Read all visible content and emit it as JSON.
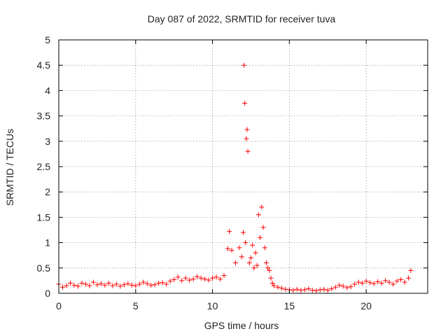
{
  "chart_data": {
    "type": "scatter",
    "title": "Day 087 of 2022, SRMTID for receiver tuva",
    "xlabel": "GPS time / hours",
    "ylabel": "SRMTID / TECUs",
    "xlim": [
      0,
      24
    ],
    "ylim": [
      0,
      5
    ],
    "xticks": [
      0,
      5,
      10,
      15,
      20
    ],
    "yticks": [
      0,
      0.5,
      1,
      1.5,
      2,
      2.5,
      3,
      3.5,
      4,
      4.5,
      5
    ],
    "ytick_labels": [
      "0",
      "0.5",
      "1",
      "1.5",
      "2",
      "2.5",
      "3",
      "3.5",
      "4",
      "4.5",
      "5"
    ],
    "grid": true,
    "marker": "+",
    "color": "#ff0000",
    "series": [
      {
        "x": [
          0.0,
          0.25,
          0.5,
          0.75,
          1.0,
          1.25,
          1.5,
          1.75,
          2.0,
          2.25,
          2.5,
          2.75,
          3.0,
          3.25,
          3.5,
          3.75,
          4.0,
          4.25,
          4.5,
          4.75,
          5.0,
          5.25,
          5.5,
          5.75,
          6.0,
          6.25,
          6.5,
          6.75,
          7.0,
          7.25,
          7.5,
          7.75,
          8.0,
          8.25,
          8.5,
          8.75,
          9.0,
          9.25,
          9.5,
          9.75,
          10.0,
          10.25,
          10.5,
          10.75,
          11.0,
          11.1,
          11.25,
          11.5,
          11.75,
          11.9,
          12.0,
          12.05,
          12.1,
          12.15,
          12.2,
          12.25,
          12.3,
          12.4,
          12.5,
          12.6,
          12.7,
          12.8,
          12.9,
          13.0,
          13.1,
          13.2,
          13.3,
          13.4,
          13.5,
          13.6,
          13.7,
          13.8,
          13.9,
          14.0,
          14.25,
          14.5,
          14.75,
          15.0,
          15.25,
          15.5,
          15.75,
          16.0,
          16.25,
          16.5,
          16.75,
          17.0,
          17.25,
          17.5,
          17.75,
          18.0,
          18.25,
          18.5,
          18.75,
          19.0,
          19.25,
          19.5,
          19.75,
          20.0,
          20.25,
          20.5,
          20.75,
          21.0,
          21.25,
          21.5,
          21.75,
          22.0,
          22.25,
          22.5,
          22.75,
          22.9
        ],
        "y": [
          0.18,
          0.12,
          0.15,
          0.2,
          0.16,
          0.14,
          0.2,
          0.18,
          0.15,
          0.22,
          0.17,
          0.19,
          0.16,
          0.2,
          0.15,
          0.18,
          0.14,
          0.17,
          0.19,
          0.16,
          0.15,
          0.18,
          0.22,
          0.19,
          0.16,
          0.17,
          0.2,
          0.21,
          0.18,
          0.24,
          0.27,
          0.32,
          0.25,
          0.3,
          0.26,
          0.28,
          0.33,
          0.3,
          0.28,
          0.26,
          0.3,
          0.32,
          0.28,
          0.35,
          0.88,
          1.22,
          0.85,
          0.6,
          0.9,
          0.72,
          1.2,
          4.5,
          3.75,
          1.0,
          3.05,
          3.23,
          2.8,
          0.6,
          0.7,
          0.95,
          0.5,
          0.8,
          0.55,
          1.55,
          1.1,
          1.7,
          1.3,
          0.9,
          0.6,
          0.5,
          0.45,
          0.3,
          0.2,
          0.15,
          0.12,
          0.1,
          0.08,
          0.07,
          0.06,
          0.08,
          0.06,
          0.07,
          0.09,
          0.06,
          0.05,
          0.07,
          0.08,
          0.06,
          0.09,
          0.12,
          0.16,
          0.14,
          0.11,
          0.13,
          0.18,
          0.22,
          0.2,
          0.24,
          0.21,
          0.19,
          0.23,
          0.2,
          0.25,
          0.22,
          0.18,
          0.24,
          0.27,
          0.22,
          0.3,
          0.45
        ]
      }
    ]
  }
}
